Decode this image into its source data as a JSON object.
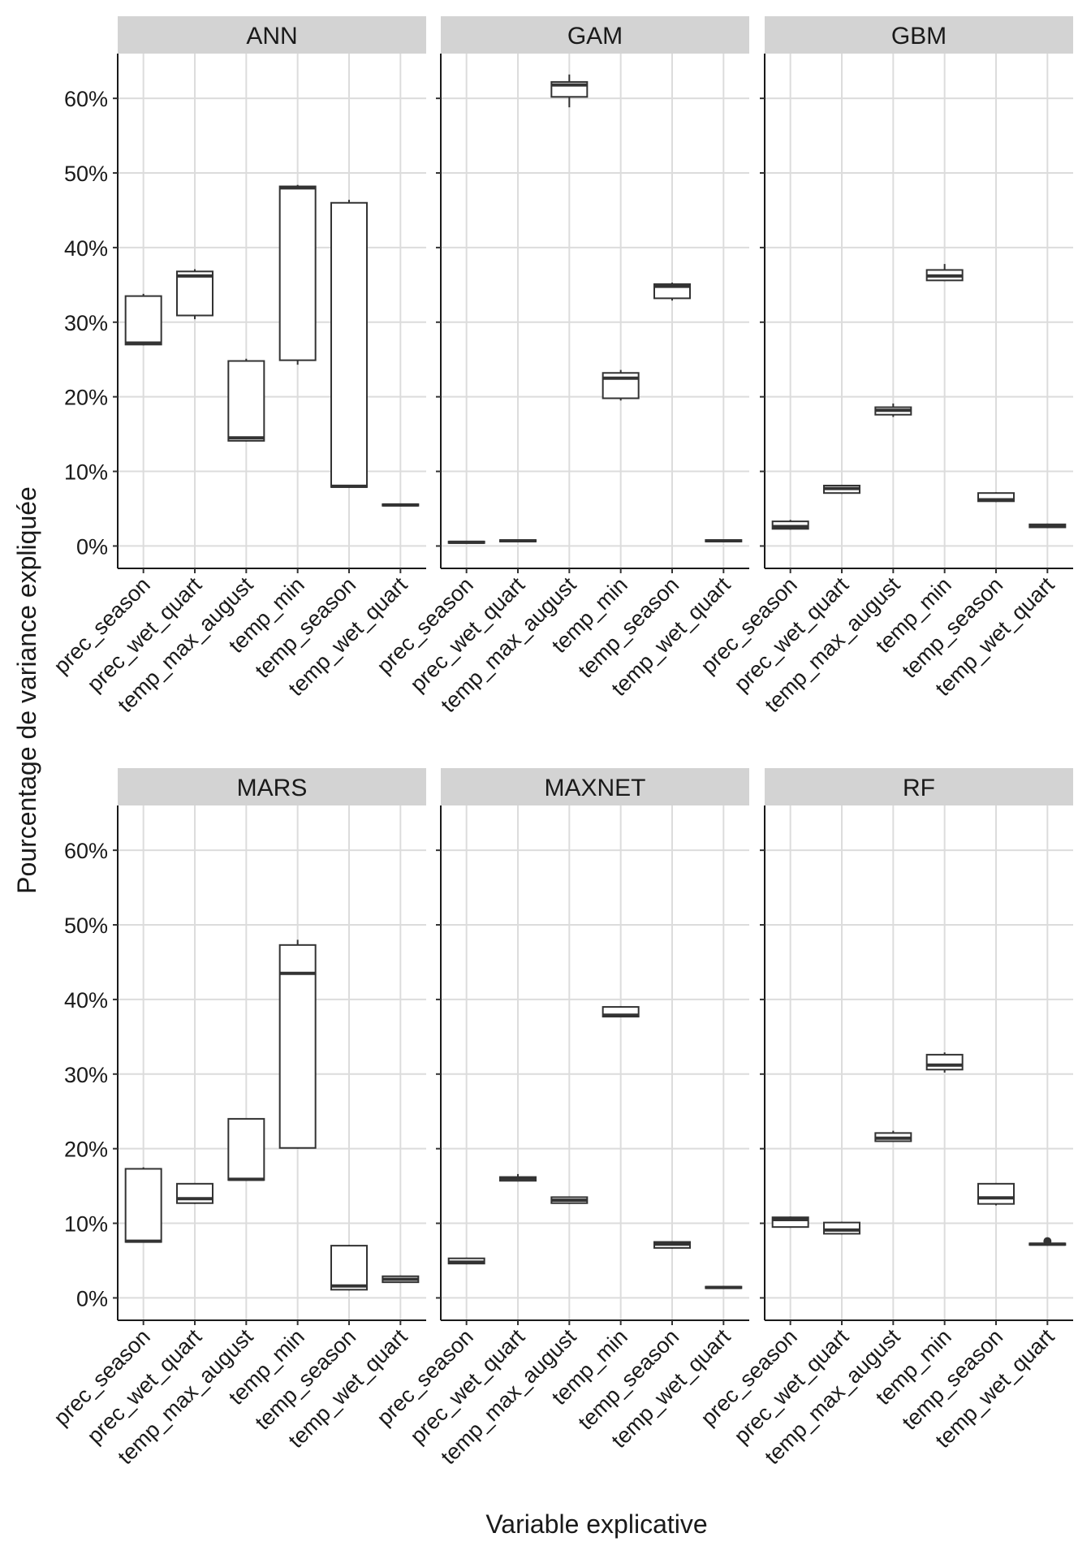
{
  "chart_data": {
    "type": "boxplot",
    "xlabel": "Variable explicative",
    "ylabel": "Pourcentage de variance expliquée",
    "ylim": [
      -3,
      66
    ],
    "yticks": [
      0,
      10,
      20,
      30,
      40,
      50,
      60
    ],
    "ytick_labels": [
      "0%",
      "10%",
      "20%",
      "30%",
      "40%",
      "50%",
      "60%"
    ],
    "categories": [
      "prec_season",
      "prec_wet_quart",
      "temp_max_august",
      "temp_min",
      "temp_season",
      "temp_wet_quart"
    ],
    "panels": [
      {
        "name": "ANN",
        "boxes": [
          {
            "min": 26.9,
            "q1": 27.0,
            "median": 27.2,
            "q3": 33.5,
            "max": 33.8
          },
          {
            "min": 30.4,
            "q1": 30.9,
            "median": 36.2,
            "q3": 36.8,
            "max": 37.1
          },
          {
            "min": 14.0,
            "q1": 14.1,
            "median": 14.5,
            "q3": 24.8,
            "max": 25.1
          },
          {
            "min": 24.3,
            "q1": 24.9,
            "median": 48.0,
            "q3": 48.2,
            "max": 48.4
          },
          {
            "min": 7.8,
            "q1": 7.9,
            "median": 8.0,
            "q3": 46.0,
            "max": 46.4
          },
          {
            "min": 5.3,
            "q1": 5.4,
            "median": 5.5,
            "q3": 5.6,
            "max": 5.7
          }
        ]
      },
      {
        "name": "GAM",
        "boxes": [
          {
            "min": 0.3,
            "q1": 0.4,
            "median": 0.5,
            "q3": 0.6,
            "max": 0.7
          },
          {
            "min": 0.5,
            "q1": 0.6,
            "median": 0.7,
            "q3": 0.8,
            "max": 0.9
          },
          {
            "min": 58.8,
            "q1": 60.2,
            "median": 61.8,
            "q3": 62.2,
            "max": 63.2
          },
          {
            "min": 19.5,
            "q1": 19.8,
            "median": 22.5,
            "q3": 23.2,
            "max": 23.6
          },
          {
            "min": 32.9,
            "q1": 33.2,
            "median": 34.8,
            "q3": 35.1,
            "max": 35.3
          },
          {
            "min": 0.5,
            "q1": 0.6,
            "median": 0.7,
            "q3": 0.8,
            "max": 0.9
          }
        ]
      },
      {
        "name": "GBM",
        "boxes": [
          {
            "min": 2.2,
            "q1": 2.3,
            "median": 2.6,
            "q3": 3.3,
            "max": 3.5
          },
          {
            "min": 7.0,
            "q1": 7.1,
            "median": 7.7,
            "q3": 8.1,
            "max": 8.2
          },
          {
            "min": 17.3,
            "q1": 17.6,
            "median": 18.2,
            "q3": 18.6,
            "max": 19.1
          },
          {
            "min": 35.5,
            "q1": 35.6,
            "median": 36.2,
            "q3": 37.0,
            "max": 37.8
          },
          {
            "min": 5.9,
            "q1": 6.0,
            "median": 6.2,
            "q3": 7.1,
            "max": 7.2
          },
          {
            "min": 2.4,
            "q1": 2.5,
            "median": 2.7,
            "q3": 2.9,
            "max": 3.0
          }
        ]
      },
      {
        "name": "MARS",
        "boxes": [
          {
            "min": 7.4,
            "q1": 7.5,
            "median": 7.6,
            "q3": 17.3,
            "max": 17.5
          },
          {
            "min": 12.6,
            "q1": 12.7,
            "median": 13.3,
            "q3": 15.3,
            "max": 15.4
          },
          {
            "min": 15.7,
            "q1": 15.8,
            "median": 15.9,
            "q3": 24.0,
            "max": 24.1
          },
          {
            "min": 20.0,
            "q1": 20.1,
            "median": 43.5,
            "q3": 47.3,
            "max": 48.0
          },
          {
            "min": 1.0,
            "q1": 1.1,
            "median": 1.6,
            "q3": 7.0,
            "max": 7.1
          },
          {
            "min": 2.0,
            "q1": 2.1,
            "median": 2.5,
            "q3": 2.9,
            "max": 3.0
          }
        ]
      },
      {
        "name": "MAXNET",
        "boxes": [
          {
            "min": 4.5,
            "q1": 4.6,
            "median": 4.8,
            "q3": 5.3,
            "max": 5.4
          },
          {
            "min": 15.6,
            "q1": 15.7,
            "median": 16.0,
            "q3": 16.2,
            "max": 16.6
          },
          {
            "min": 12.6,
            "q1": 12.7,
            "median": 13.1,
            "q3": 13.5,
            "max": 13.6
          },
          {
            "min": 37.6,
            "q1": 37.7,
            "median": 37.9,
            "q3": 39.0,
            "max": 39.1
          },
          {
            "min": 6.6,
            "q1": 6.7,
            "median": 7.2,
            "q3": 7.5,
            "max": 7.6
          },
          {
            "min": 1.2,
            "q1": 1.3,
            "median": 1.4,
            "q3": 1.5,
            "max": 1.6
          }
        ]
      },
      {
        "name": "RF",
        "boxes": [
          {
            "min": 9.4,
            "q1": 9.5,
            "median": 10.5,
            "q3": 10.8,
            "max": 10.9
          },
          {
            "min": 8.5,
            "q1": 8.6,
            "median": 9.1,
            "q3": 10.1,
            "max": 10.2
          },
          {
            "min": 20.9,
            "q1": 21.0,
            "median": 21.4,
            "q3": 22.1,
            "max": 22.4
          },
          {
            "min": 30.2,
            "q1": 30.6,
            "median": 31.2,
            "q3": 32.6,
            "max": 32.9
          },
          {
            "min": 12.4,
            "q1": 12.6,
            "median": 13.4,
            "q3": 15.3,
            "max": 15.4
          },
          {
            "min": 7.0,
            "q1": 7.1,
            "median": 7.2,
            "q3": 7.3,
            "max": 7.4,
            "outliers": [
              7.6
            ]
          }
        ]
      }
    ]
  }
}
